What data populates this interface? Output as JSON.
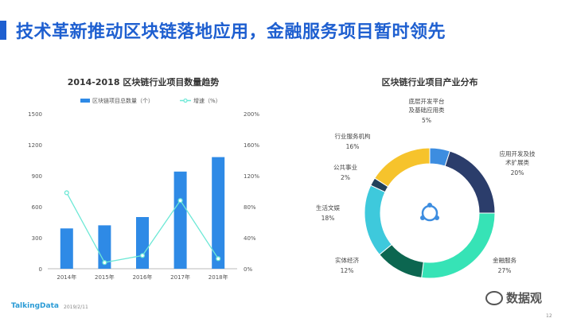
{
  "slide": {
    "title": "技术革新推动区块链落地应用，金融服务项目暂时领先",
    "footer_logo": "TalkingData",
    "footer_date": "2019/2/11",
    "page_number": "12",
    "watermark": "数据观"
  },
  "colors": {
    "title": "#1e5fd0",
    "bar": "#2e8ae6",
    "line": "#6de8d6",
    "axis_text": "#555555"
  },
  "chart_data": [
    {
      "type": "bar",
      "title": "2014-2018  区块链行业项目数量趋势",
      "categories": [
        "2014年",
        "2015年",
        "2016年",
        "2017年",
        "2018年"
      ],
      "series": [
        {
          "name": "区块链项目总数量（个）",
          "type": "bar",
          "axis": "left",
          "values": [
            390,
            420,
            500,
            940,
            1080
          ]
        },
        {
          "name": "增速（%）",
          "type": "line",
          "axis": "right",
          "values": [
            98,
            8,
            17,
            88,
            13
          ]
        }
      ],
      "y_left": {
        "min": 0,
        "max": 1500,
        "ticks": [
          "0",
          "300",
          "600",
          "900",
          "1200",
          "1500"
        ]
      },
      "y_right": {
        "min": 0,
        "max": 200,
        "ticks": [
          "0%",
          "40%",
          "80%",
          "120%",
          "160%",
          "200%"
        ]
      },
      "legend": "top",
      "grid": false
    },
    {
      "type": "pie",
      "donut": true,
      "title": "区块链行业项目产业分布",
      "slices": [
        {
          "label": "底层开发平台及基础应用类",
          "lines": [
            "底层开发平台",
            "及基础应用类"
          ],
          "pct_label": "5%",
          "value": 5,
          "color": "#3d8de0"
        },
        {
          "label": "应用开发及技术扩展类",
          "lines": [
            "应用开发及技",
            "术扩展类"
          ],
          "pct_label": "20%",
          "value": 20,
          "color": "#2b3d6b"
        },
        {
          "label": "金融服务",
          "lines": [
            "金融服务"
          ],
          "pct_label": "27%",
          "value": 27,
          "color": "#36e3b6"
        },
        {
          "label": "实体经济",
          "lines": [
            "实体经济"
          ],
          "pct_label": "12%",
          "value": 12,
          "color": "#0c6650"
        },
        {
          "label": "生活文娱",
          "lines": [
            "生活文娱"
          ],
          "pct_label": "18%",
          "value": 18,
          "color": "#3ec9dc"
        },
        {
          "label": "公共事业",
          "lines": [
            "公共事业"
          ],
          "pct_label": "2%",
          "value": 2,
          "color": "#23415a"
        },
        {
          "label": "行业服务机构",
          "lines": [
            "行业服务机构"
          ],
          "pct_label": "16%",
          "value": 16,
          "color": "#f6c32c"
        }
      ]
    }
  ]
}
